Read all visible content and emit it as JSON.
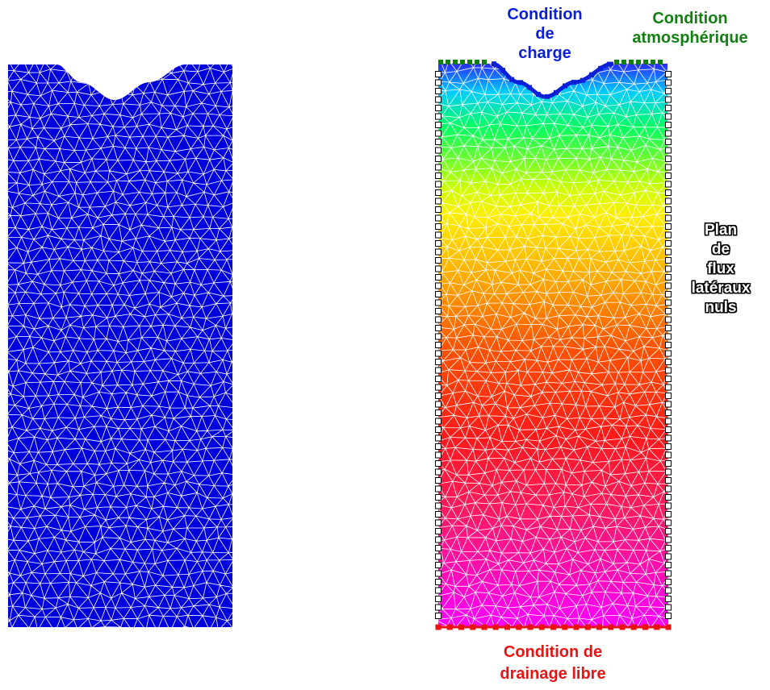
{
  "labels": {
    "head_condition": [
      "Condition",
      "de",
      "charge"
    ],
    "atmospheric_condition": [
      "Condition",
      "atmosphérique"
    ],
    "lateral_flux": [
      "Plan",
      "de",
      "flux",
      "latéraux",
      "nuls"
    ],
    "free_drainage": [
      "Condition de",
      "drainage libre"
    ]
  },
  "colors": {
    "mesh_fill": "#0000dd",
    "mesh_lines": "#ffffff",
    "head_condition": "#0a1fd8",
    "atmospheric_condition": "#137f13",
    "free_drainage": "#e81414",
    "lateral_markers": "#ffffff",
    "gradient": [
      "#2a2aff",
      "#00ccff",
      "#00ff66",
      "#ccff00",
      "#ffee00",
      "#ffaa00",
      "#ff5500",
      "#ff1a1a",
      "#ff1a66",
      "#ff00ff"
    ]
  }
}
